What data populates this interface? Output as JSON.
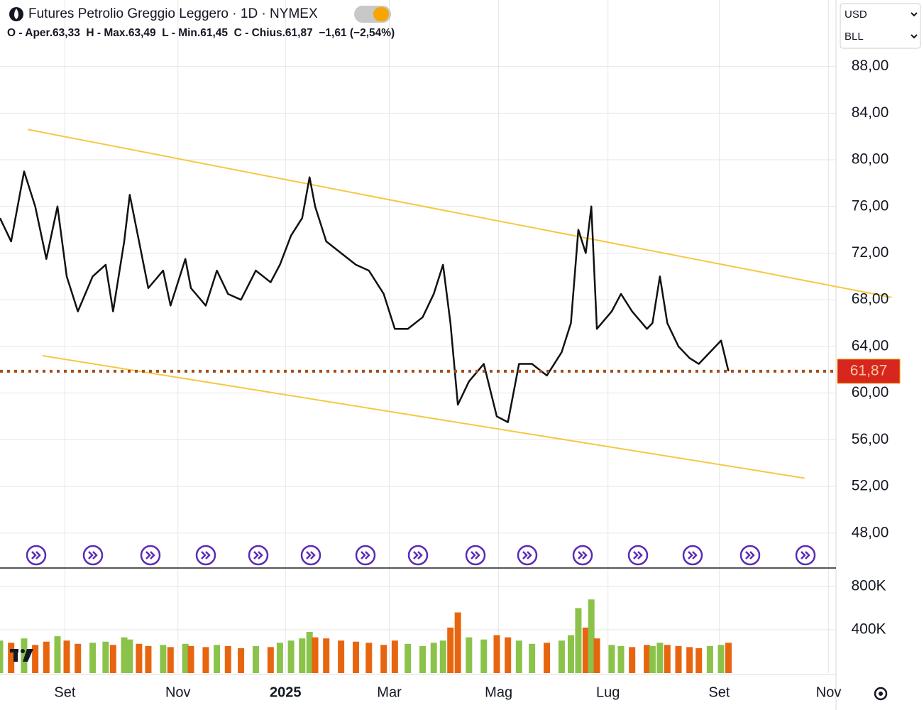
{
  "chart_data": [
    {
      "type": "line",
      "title": "Futures Petrolio Greggio Leggero · 1D · NYMEX",
      "subtitle": "O - Aper.63,33  H - Max.63,49  L - Min.61,45  C - Chius.61,87  −1,61 (−2,54%)",
      "currency": "USD",
      "unit": "BLL",
      "x": [
        0,
        6,
        13,
        19,
        25,
        31,
        36,
        42,
        50,
        57,
        61,
        67,
        70,
        75,
        80,
        88,
        92,
        100,
        103,
        111,
        117,
        123,
        130,
        138,
        146,
        151,
        157,
        163,
        167,
        170,
        176,
        184,
        192,
        199,
        207,
        213,
        220,
        228,
        234,
        239,
        243,
        247,
        253,
        261,
        268,
        274,
        280,
        287,
        295,
        303,
        308,
        312,
        316,
        319,
        322,
        330,
        335,
        341,
        349,
        352,
        356,
        360,
        366,
        372,
        377,
        383,
        389,
        393
      ],
      "series": [
        {
          "color": "#111111",
          "values": [
            75,
            73,
            79,
            76,
            71.5,
            76,
            70,
            67,
            70,
            71,
            67,
            73,
            77,
            73,
            69,
            70.5,
            67.5,
            71.5,
            69,
            67.5,
            70.5,
            68.5,
            68,
            70.5,
            69.5,
            71,
            73.5,
            75,
            78.5,
            76,
            73,
            72,
            71,
            70.5,
            68.5,
            65.5,
            65.5,
            66.5,
            68.5,
            71,
            66,
            59,
            61,
            62.5,
            58,
            57.5,
            62.5,
            62.5,
            61.5,
            63.5,
            66,
            74,
            72,
            76,
            65.5,
            67,
            68.5,
            67,
            65.5,
            66,
            70,
            66,
            64,
            63,
            62.5,
            63.5,
            64.5,
            61.87
          ]
        }
      ],
      "trendlines": [
        {
          "color": "#f5c842",
          "x": [
            15,
            481
          ],
          "values": [
            82.6,
            68.2
          ]
        },
        {
          "color": "#f5c842",
          "x": [
            23,
            434
          ],
          "values": [
            63.2,
            52.7
          ]
        }
      ],
      "last_price": {
        "value": 61.87,
        "label": "61,87"
      },
      "xlim": [
        0,
        451
      ],
      "xticks": [
        {
          "value": 35,
          "label": "Set"
        },
        {
          "value": 96,
          "label": "Nov"
        },
        {
          "value": 154,
          "label": "2025"
        },
        {
          "value": 210,
          "label": "Mar"
        },
        {
          "value": 269,
          "label": "Mag"
        },
        {
          "value": 328,
          "label": "Lug"
        },
        {
          "value": 388,
          "label": "Set"
        },
        {
          "value": 447,
          "label": "Nov"
        }
      ],
      "ylim": [
        45,
        93.7
      ],
      "yticks": [
        {
          "value": 48,
          "label": "48,00"
        },
        {
          "value": 52,
          "label": "52,00"
        },
        {
          "value": 56,
          "label": "56,00"
        },
        {
          "value": 60,
          "label": "60,00"
        },
        {
          "value": 64,
          "label": "64,00"
        },
        {
          "value": 68,
          "label": "68,00"
        },
        {
          "value": 72,
          "label": "72,00"
        },
        {
          "value": 76,
          "label": "76,00"
        },
        {
          "value": 80,
          "label": "80,00"
        },
        {
          "value": 84,
          "label": "84,00"
        },
        {
          "value": 88,
          "label": "88,00"
        }
      ],
      "grid": true
    },
    {
      "type": "bar",
      "x": [
        0,
        6,
        13,
        19,
        25,
        31,
        36,
        42,
        50,
        57,
        61,
        67,
        70,
        75,
        80,
        88,
        92,
        100,
        103,
        111,
        117,
        123,
        130,
        138,
        146,
        151,
        157,
        163,
        167,
        170,
        176,
        184,
        192,
        199,
        207,
        213,
        220,
        228,
        234,
        239,
        243,
        247,
        253,
        261,
        268,
        274,
        280,
        287,
        295,
        303,
        308,
        312,
        316,
        319,
        322,
        330,
        335,
        341,
        349,
        352,
        356,
        360,
        366,
        372,
        377,
        383,
        389,
        393
      ],
      "values": [
        300000,
        280000,
        320000,
        260000,
        290000,
        340000,
        300000,
        270000,
        280000,
        290000,
        260000,
        330000,
        310000,
        270000,
        250000,
        260000,
        240000,
        270000,
        250000,
        240000,
        260000,
        250000,
        230000,
        250000,
        240000,
        280000,
        300000,
        320000,
        380000,
        330000,
        320000,
        300000,
        290000,
        280000,
        260000,
        300000,
        270000,
        250000,
        280000,
        300000,
        420000,
        560000,
        330000,
        310000,
        350000,
        330000,
        300000,
        270000,
        280000,
        300000,
        350000,
        600000,
        420000,
        680000,
        320000,
        260000,
        250000,
        240000,
        260000,
        250000,
        280000,
        260000,
        250000,
        240000,
        230000,
        250000,
        260000,
        280000
      ],
      "up_color": "#8bc34a",
      "down_color": "#e8650f",
      "xlim": [
        0,
        451
      ],
      "ylim": [
        0,
        970000
      ],
      "yticks": [
        {
          "value": 400000,
          "label": "400K"
        },
        {
          "value": 800000,
          "label": "800K"
        }
      ],
      "grid": true
    }
  ]
}
